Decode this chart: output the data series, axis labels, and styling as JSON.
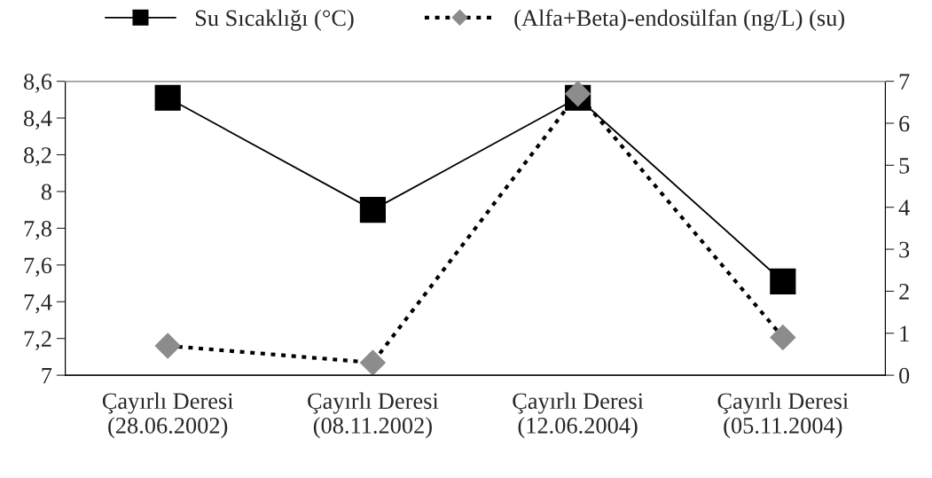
{
  "chart_data": {
    "type": "line",
    "categories": [
      "Çayırlı Deresi\n(28.06.2002)",
      "Çayırlı Deresi\n(08.11.2002)",
      "Çayırlı Deresi\n(12.06.2004)",
      "Çayırlı Deresi\n(05.11.2004)"
    ],
    "series": [
      {
        "name": "Su Sıcaklığı (°C)",
        "color": "#000000",
        "marker": "square",
        "line_style": "solid",
        "values": [
          8.51,
          7.9,
          8.51,
          7.51
        ]
      },
      {
        "name": "(Alfa+Beta)-endosülfan (ng/L) (su)",
        "color": "#8c8c8c",
        "marker": "diamond",
        "line_style": "dotted",
        "axis": "y2",
        "values": [
          0.7,
          0.3,
          6.7,
          0.9
        ]
      }
    ],
    "ylim": [
      7,
      8.6
    ],
    "yticks": [
      7,
      {
        "value": 7.2,
        "label": "7,2"
      },
      {
        "value": 7.4,
        "label": "7,4"
      },
      {
        "value": 7.6,
        "label": "7,6"
      },
      {
        "value": 7.8,
        "label": "7,8"
      },
      8,
      {
        "value": 8.2,
        "label": "8,2"
      },
      {
        "value": 8.4,
        "label": "8,4"
      },
      {
        "value": 8.6,
        "label": "8,6"
      }
    ],
    "y2lim": [
      0,
      7
    ],
    "y2ticks": [
      0,
      1,
      2,
      3,
      4,
      5,
      6,
      7
    ],
    "grid": false,
    "legend": "top"
  }
}
